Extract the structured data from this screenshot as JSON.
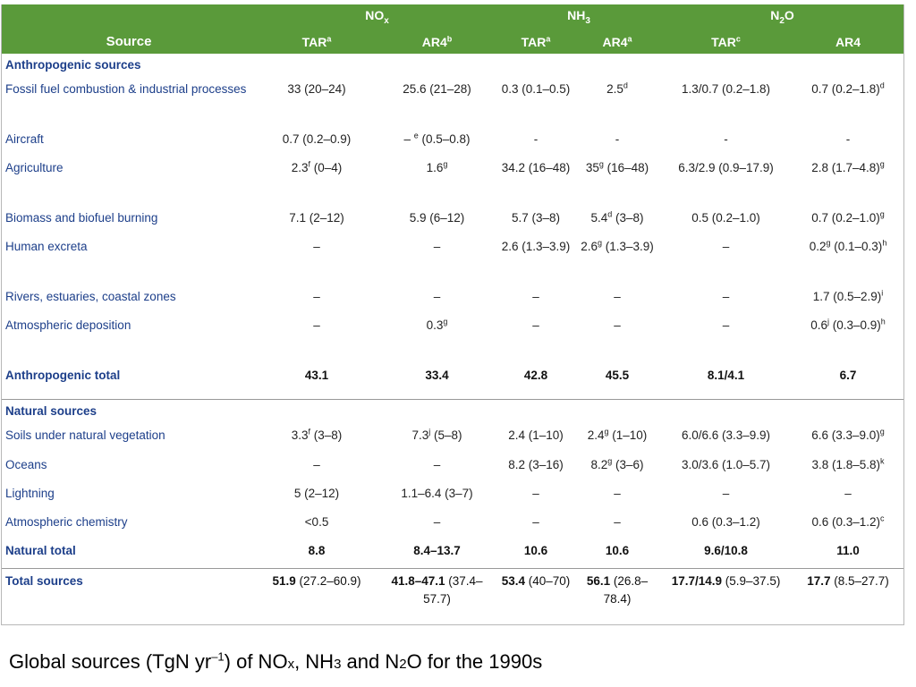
{
  "header": {
    "source": "Source",
    "nox": "NO",
    "nox_sub": "x",
    "nh3": "NH",
    "nh3_sub": "3",
    "n2o_a": "N",
    "n2o_sub": "2",
    "n2o_b": "O",
    "tar": "TAR",
    "ar4": "AR4",
    "sup_a": "a",
    "sup_b": "b",
    "sup_c": "c"
  },
  "rows": [
    {
      "type": "section",
      "label": "Anthropogenic sources"
    },
    {
      "label": "Fossil fuel combustion & industrial processes",
      "cells": [
        "33 (20–24)",
        "25.6 (21–28)",
        "0.3 (0.1–0.5)",
        "2.5<sup>d</sup>",
        "1.3/0.7 (0.2–1.8)",
        "0.7 (0.2–1.8)<sup>d</sup>"
      ]
    },
    {
      "label": "Aircraft",
      "cells": [
        "0.7 (0.2–0.9)",
        "– <sup>e</sup> (0.5–0.8)",
        "-",
        "-",
        "-",
        "-"
      ]
    },
    {
      "label": "Agriculture",
      "cells": [
        "2.3<sup>f</sup> (0–4)",
        "1.6<sup>g</sup>",
        "34.2 (16–48)",
        "35<sup>g</sup> (16–48)",
        "6.3/2.9 (0.9–17.9)",
        "2.8 (1.7–4.8)<sup>g</sup>"
      ]
    },
    {
      "label": "Biomass and biofuel burning",
      "cells": [
        "7.1 (2–12)",
        "5.9 (6–12)",
        "5.7 (3–8)",
        "5.4<sup>d</sup> (3–8)",
        "0.5 (0.2–1.0)",
        "0.7 (0.2–1.0)<sup>g</sup>"
      ]
    },
    {
      "label": "Human excreta",
      "cells": [
        "–",
        "–",
        "2.6 (1.3–3.9)",
        "2.6<sup>g</sup> (1.3–3.9)",
        "–",
        "0.2<sup>g</sup> (0.1–0.3)<sup>h</sup>"
      ]
    },
    {
      "label": "Rivers, estuaries, coastal zones",
      "cells": [
        "–",
        "–",
        "–",
        "–",
        "–",
        "1.7 (0.5–2.9)<sup>i</sup>"
      ]
    },
    {
      "label": "Atmospheric deposition",
      "cells": [
        "–",
        "0.3<sup>g</sup>",
        "–",
        "–",
        "–",
        "0.6<sup>j</sup> (0.3–0.9)<sup>h</sup>"
      ]
    },
    {
      "type": "total",
      "label": "Anthropogenic total",
      "cells": [
        "43.1",
        "33.4",
        "42.8",
        "45.5",
        "8.1/4.1",
        "6.7"
      ]
    },
    {
      "type": "section",
      "sep": true,
      "label": "Natural sources"
    },
    {
      "label": "Soils under natural vegetation",
      "cells": [
        "3.3<sup>f</sup> (3–8)",
        "7.3<sup>j</sup> (5–8)",
        "2.4 (1–10)",
        "2.4<sup>g</sup> (1–10)",
        "6.0/6.6 (3.3–9.9)",
        "6.6 (3.3–9.0)<sup>g</sup>"
      ]
    },
    {
      "label": "Oceans",
      "cells": [
        "–",
        "–",
        "8.2 (3–16)",
        "8.2<sup>g</sup> (3–6)",
        "3.0/3.6 (1.0–5.7)",
        "3.8 (1.8–5.8)<sup>k</sup>"
      ]
    },
    {
      "label": "Lightning",
      "cells": [
        "5 (2–12)",
        "1.1–6.4 (3–7)",
        "–",
        "–",
        "–",
        "–"
      ]
    },
    {
      "label": "Atmospheric chemistry",
      "cells": [
        "<0.5",
        "–",
        "–",
        "–",
        "0.6 (0.3–1.2)",
        "0.6 (0.3–1.2)<sup>c</sup>"
      ]
    },
    {
      "type": "total",
      "label": "Natural total",
      "cells": [
        "8.8",
        "8.4–13.7",
        "10.6",
        "10.6",
        "9.6/10.8",
        "11.0"
      ]
    },
    {
      "type": "total",
      "sep": true,
      "label": "Total sources",
      "cells": [
        "<b>51.9</b> <span style=\"font-weight:normal\">(27.2–60.9)</span>",
        "<b>41.8–47.1</b> <span style=\"font-weight:normal\">(37.4–57.7)</span>",
        "<b>53.4</b> <span style=\"font-weight:normal\">(40–70)</span>",
        "<b>56.1</b> <span style=\"font-weight:normal\">(26.8–78.4)</span>",
        "<b>17.7/14.9</b> <span style=\"font-weight:normal\">(5.9–37.5)</span>",
        "<b>17.7</b> <span style=\"font-weight:normal\">(8.5–27.7)</span>"
      ]
    }
  ],
  "caption": {
    "p1": "Global sources (TgN yr",
    "sup": "–1",
    "p2": ") of NO",
    "x": "x",
    "p3": ", NH",
    "three": "3",
    "p4": " and N",
    "two": "2",
    "p5": "O for the 1990s"
  }
}
